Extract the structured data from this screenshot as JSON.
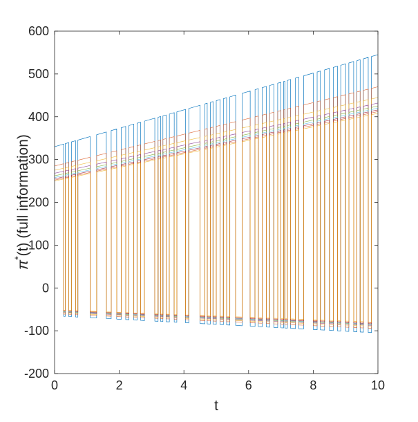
{
  "chart_data": {
    "type": "line",
    "title": "",
    "xlabel": "t",
    "ylabel_base": "π",
    "ylabel_sup": "*",
    "ylabel_rest": "(t)  (full information)",
    "xlim": [
      0,
      10
    ],
    "ylim": [
      -200,
      600
    ],
    "xticks": [
      0,
      2,
      4,
      6,
      8,
      10
    ],
    "yticks": [
      -200,
      -100,
      0,
      100,
      200,
      300,
      400,
      500,
      600
    ],
    "xtick_labels": [
      "0",
      "2",
      "4",
      "6",
      "8",
      "10"
    ],
    "ytick_labels": [
      "-200",
      "-100",
      "0",
      "100",
      "200",
      "300",
      "400",
      "500",
      "600"
    ],
    "grid": false,
    "legend": "none",
    "description_of_series": "Many overlapping step-like trajectories that switch between a rising high branch and a slowly declining low branch",
    "switch_times": [
      0.28,
      0.33,
      0.44,
      0.52,
      0.65,
      0.72,
      1.1,
      1.3,
      1.6,
      1.75,
      1.92,
      2.06,
      2.2,
      2.3,
      2.45,
      2.55,
      2.66,
      2.78,
      3.1,
      3.2,
      3.28,
      3.35,
      3.45,
      3.55,
      3.7,
      3.78,
      4.05,
      4.15,
      4.5,
      4.65,
      4.72,
      4.82,
      4.9,
      5.0,
      5.12,
      5.22,
      5.32,
      5.42,
      5.6,
      5.8,
      6.05,
      6.2,
      6.3,
      6.42,
      6.55,
      6.65,
      6.78,
      6.9,
      7.0,
      7.08,
      7.12,
      7.2,
      7.3,
      7.45,
      7.55,
      7.7,
      8.0,
      8.12,
      8.22,
      8.35,
      8.5,
      8.62,
      8.75,
      8.85,
      9.0,
      9.1,
      9.25,
      9.35,
      9.45,
      9.55,
      9.7,
      9.8
    ],
    "series": [
      {
        "color": "#0072BD",
        "high": [
          330,
          545
        ],
        "low": [
          -65,
          -105
        ]
      },
      {
        "color": "#D95319",
        "high": [
          285,
          470
        ],
        "low": [
          -60,
          -95
        ]
      },
      {
        "color": "#EDB120",
        "high": [
          275,
          445
        ],
        "low": [
          -58,
          -90
        ]
      },
      {
        "color": "#7E2F8E",
        "high": [
          268,
          432
        ],
        "low": [
          -56,
          -88
        ]
      },
      {
        "color": "#77AC30",
        "high": [
          262,
          425
        ],
        "low": [
          -55,
          -86
        ]
      },
      {
        "color": "#4DBEEE",
        "high": [
          258,
          420
        ],
        "low": [
          -54,
          -85
        ]
      },
      {
        "color": "#A2142F",
        "high": [
          255,
          416
        ],
        "low": [
          -53,
          -84
        ]
      },
      {
        "color": "#D95319",
        "high": [
          252,
          412
        ],
        "low": [
          -52,
          -82
        ]
      },
      {
        "color": "#EDB120",
        "high": [
          250,
          408
        ],
        "low": [
          -51,
          -80
        ]
      }
    ]
  }
}
